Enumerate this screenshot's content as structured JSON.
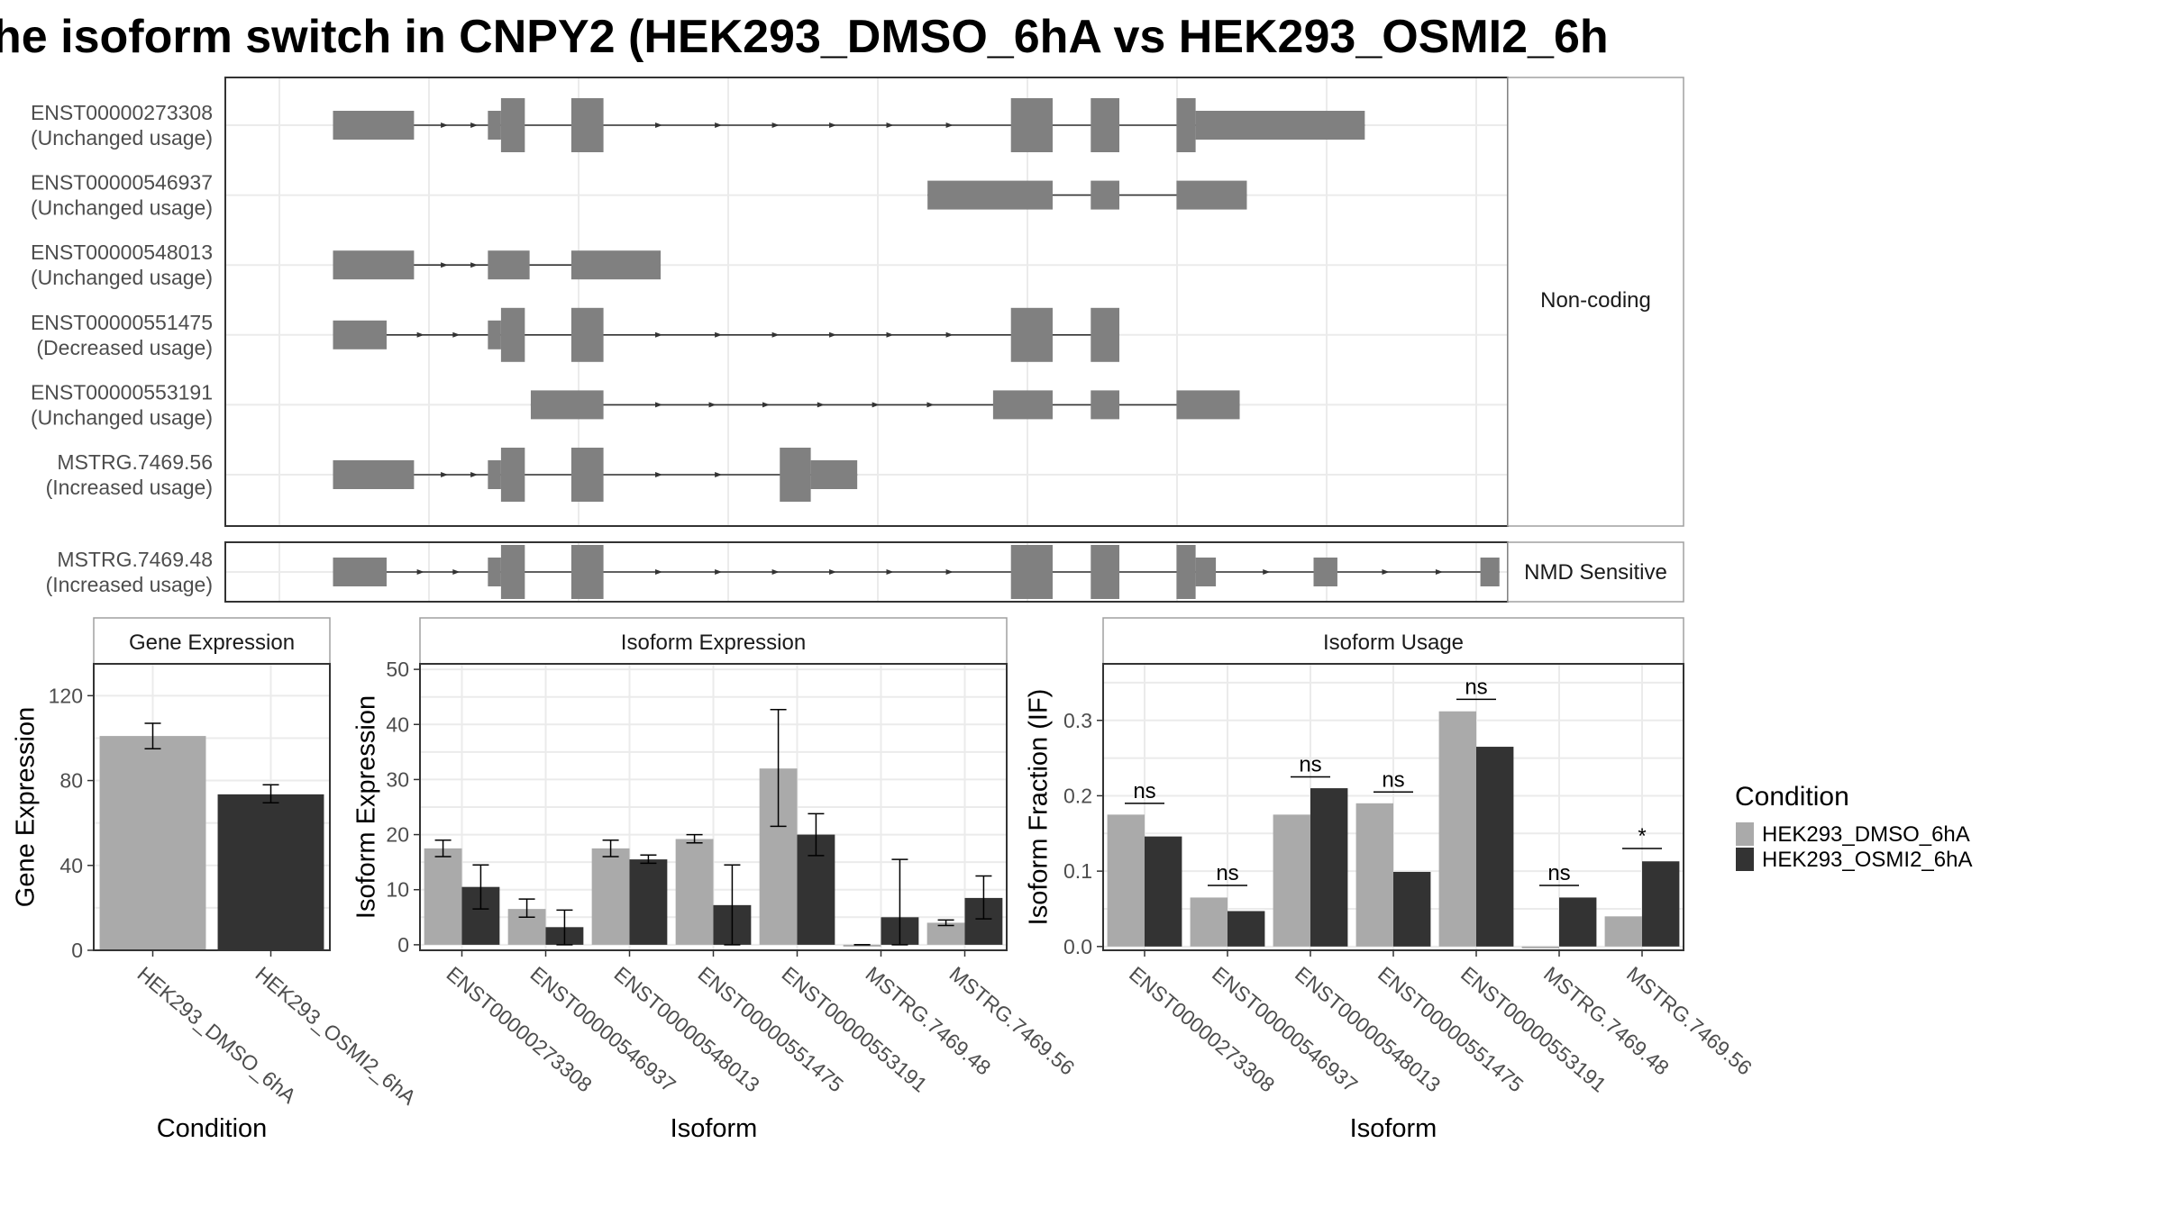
{
  "title": "he isoform switch in CNPY2 (HEK293_DMSO_6hA vs HEK293_OSMI2_6h",
  "colors": {
    "exon": "#808080",
    "intron": "#333333",
    "dmso": "#AAAAAA",
    "osmi2": "#333333",
    "grid": "#EBEBEB",
    "strip_fill": "#FFFFFF",
    "border": "#333333"
  },
  "legend": {
    "title": "Condition",
    "entries": [
      {
        "label": "HEK293_DMSO_6hA",
        "color": "#AAAAAA"
      },
      {
        "label": "HEK293_OSMI2_6hA",
        "color": "#333333"
      }
    ]
  },
  "structure": {
    "coordinate_range": [
      0,
      1000
    ],
    "groups": [
      {
        "strip_label": "Non-coding",
        "transcripts": [
          {
            "name": "ENST00000273308",
            "usage": "(Unchanged usage)",
            "exons": [
              [
                45,
                113,
                "s"
              ],
              [
                175,
                186,
                "s"
              ],
              [
                186,
                206,
                "t"
              ],
              [
                245,
                272,
                "t"
              ],
              [
                614,
                649,
                "t"
              ],
              [
                681,
                705,
                "t"
              ],
              [
                753,
                769,
                "t"
              ],
              [
                769,
                911,
                "s"
              ]
            ],
            "arrows": [
              140,
              165,
              320,
              370,
              418,
              466,
              514,
              564
            ]
          },
          {
            "name": "ENST00000546937",
            "usage": "(Unchanged usage)",
            "exons": [
              [
                544,
                649,
                "s"
              ],
              [
                681,
                705,
                "s"
              ],
              [
                753,
                812,
                "s"
              ]
            ],
            "arrows": []
          },
          {
            "name": "ENST00000548013",
            "usage": "(Unchanged usage)",
            "exons": [
              [
                45,
                113,
                "s"
              ],
              [
                175,
                210,
                "s"
              ],
              [
                245,
                320,
                "s"
              ]
            ],
            "arrows": [
              140,
              165
            ]
          },
          {
            "name": "ENST00000551475",
            "usage": "(Decreased usage)",
            "exons": [
              [
                45,
                90,
                "s"
              ],
              [
                175,
                186,
                "s"
              ],
              [
                186,
                206,
                "t"
              ],
              [
                245,
                272,
                "t"
              ],
              [
                614,
                649,
                "t"
              ],
              [
                681,
                705,
                "t"
              ]
            ],
            "arrows": [
              120,
              150,
              320,
              370,
              418,
              466,
              514,
              564
            ]
          },
          {
            "name": "ENST00000553191",
            "usage": "(Unchanged usage)",
            "exons": [
              [
                211,
                272,
                "s"
              ],
              [
                599,
                649,
                "s"
              ],
              [
                681,
                705,
                "s"
              ],
              [
                753,
                806,
                "s"
              ]
            ],
            "arrows": [
              320,
              365,
              410,
              456,
              502,
              548
            ]
          },
          {
            "name": "MSTRG.7469.56",
            "usage": "(Increased usage)",
            "exons": [
              [
                45,
                113,
                "s"
              ],
              [
                175,
                186,
                "s"
              ],
              [
                186,
                206,
                "t"
              ],
              [
                245,
                272,
                "t"
              ],
              [
                420,
                446,
                "t"
              ],
              [
                446,
                485,
                "s"
              ]
            ],
            "arrows": [
              140,
              165,
              320,
              370
            ]
          }
        ]
      },
      {
        "strip_label": "NMD Sensitive",
        "transcripts": [
          {
            "name": "MSTRG.7469.48",
            "usage": "(Increased usage)",
            "exons": [
              [
                45,
                90,
                "s"
              ],
              [
                175,
                186,
                "s"
              ],
              [
                186,
                206,
                "t"
              ],
              [
                245,
                272,
                "t"
              ],
              [
                614,
                649,
                "t"
              ],
              [
                681,
                705,
                "t"
              ],
              [
                753,
                769,
                "t"
              ],
              [
                769,
                786,
                "s"
              ],
              [
                868,
                888,
                "s"
              ],
              [
                1008,
                1024,
                "s"
              ]
            ],
            "arrows": [
              120,
              150,
              320,
              370,
              418,
              466,
              514,
              564,
              830,
              930,
              975
            ]
          }
        ]
      }
    ]
  },
  "chart_data": [
    {
      "type": "bar",
      "strip_title": "Gene Expression",
      "xlabel": "Condition",
      "ylabel": "Gene Expression",
      "ylim": [
        0,
        135
      ],
      "yticks": [
        0,
        40,
        80,
        120
      ],
      "categories": [
        "HEK293_DMSO_6hA",
        "HEK293_OSMI2_6hA"
      ],
      "series": [
        {
          "name": "HEK293_DMSO_6hA",
          "values": [
            101,
            null
          ],
          "err_low": [
            95,
            null
          ],
          "err_high": [
            107,
            null
          ]
        },
        {
          "name": "HEK293_OSMI2_6hA",
          "values": [
            null,
            73.5
          ],
          "err_low": [
            null,
            69.5
          ],
          "err_high": [
            null,
            78
          ]
        }
      ]
    },
    {
      "type": "bar",
      "strip_title": "Isoform Expression",
      "xlabel": "Isoform",
      "ylabel": "Isoform Expression",
      "ylim": [
        -1,
        51
      ],
      "yticks": [
        0,
        10,
        20,
        30,
        40,
        50
      ],
      "categories": [
        "ENST00000273308",
        "ENST00000546937",
        "ENST00000548013",
        "ENST00000551475",
        "ENST00000553191",
        "MSTRG.7469.48",
        "MSTRG.7469.56"
      ],
      "series": [
        {
          "name": "HEK293_DMSO_6hA",
          "values": [
            17.5,
            6.5,
            17.5,
            19.2,
            32,
            0,
            4
          ],
          "err_low": [
            16,
            5,
            16,
            18.5,
            21.5,
            0,
            3.5
          ],
          "err_high": [
            19,
            8.3,
            19,
            20,
            42.7,
            0,
            4.5
          ]
        },
        {
          "name": "HEK293_OSMI2_6hA",
          "values": [
            10.5,
            3.2,
            15.5,
            7.2,
            20,
            5,
            8.5
          ],
          "err_low": [
            6.5,
            0,
            14.8,
            0,
            16.2,
            0,
            4.7
          ],
          "err_high": [
            14.5,
            6.3,
            16.3,
            14.5,
            23.8,
            15.5,
            12.5
          ]
        }
      ]
    },
    {
      "type": "bar",
      "strip_title": "Isoform Usage",
      "xlabel": "Isoform",
      "ylabel": "Isoform Fraction (IF)",
      "ylim": [
        -0.005,
        0.375
      ],
      "yticks": [
        0.0,
        0.1,
        0.2,
        0.3
      ],
      "ytick_labels": [
        "0.0",
        "0.1",
        "0.2",
        "0.3"
      ],
      "categories": [
        "ENST00000273308",
        "ENST00000546937",
        "ENST00000548013",
        "ENST00000551475",
        "ENST00000553191",
        "MSTRG.7469.48",
        "MSTRG.7469.56"
      ],
      "series": [
        {
          "name": "HEK293_DMSO_6hA",
          "values": [
            0.175,
            0.065,
            0.175,
            0.19,
            0.312,
            0,
            0.04
          ]
        },
        {
          "name": "HEK293_OSMI2_6hA",
          "values": [
            0.146,
            0.047,
            0.21,
            0.099,
            0.265,
            0.065,
            0.113
          ]
        }
      ],
      "significance": [
        "ns",
        "ns",
        "ns",
        "ns",
        "ns",
        "ns",
        "*"
      ],
      "significance_y": [
        0.19,
        0.081,
        0.225,
        0.205,
        0.328,
        0.081,
        0.13
      ]
    }
  ]
}
